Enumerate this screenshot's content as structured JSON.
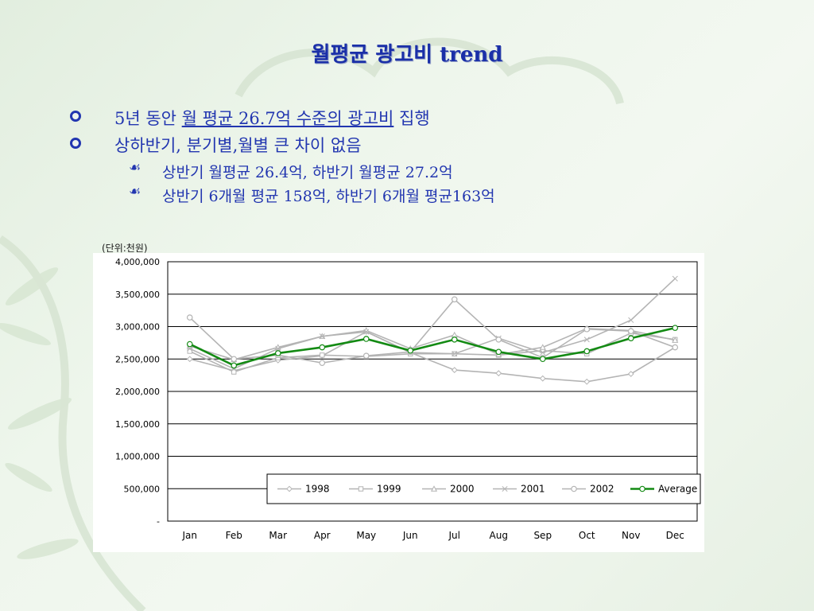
{
  "slide": {
    "title": "월평균 광고비 trend",
    "bullets": [
      {
        "prefix": "5년 동안 ",
        "underlined": "월 평균 26.7억 수준의 광고비",
        "suffix": " 집행"
      },
      {
        "text": "상하반기, 분기별,월별 큰 차이 없음"
      }
    ],
    "sub_bullets": [
      "상반기 월평균 26.4억, 하반기 월평균 27.2억",
      "상반기 6개월 평균 158억, 하반기 6개월 평균163억"
    ],
    "sub_bullet_glyph": "☙",
    "unit_label": "(단위:천원)"
  },
  "chart_data": {
    "type": "line",
    "categories": [
      "Jan",
      "Feb",
      "Mar",
      "Apr",
      "May",
      "Jun",
      "Jul",
      "Aug",
      "Sep",
      "Oct",
      "Nov",
      "Dec"
    ],
    "ylim": [
      0,
      4000000
    ],
    "y_ticks": [
      0,
      500000,
      1000000,
      1500000,
      2000000,
      2500000,
      3000000,
      3500000,
      4000000
    ],
    "y_tick_labels": [
      "-",
      "500,000",
      "1,000,000",
      "1,500,000",
      "2,000,000",
      "2,500,000",
      "3,000,000",
      "3,500,000",
      "4,000,000"
    ],
    "grid": true,
    "legend_position": "bottom-right",
    "colors": {
      "series_gray": "#b4b4b4",
      "average": "#138a13",
      "grid": "#000000"
    },
    "series": [
      {
        "name": "1998",
        "marker": "diamond",
        "values": [
          2500000,
          2320000,
          2480000,
          2550000,
          2920000,
          2600000,
          2330000,
          2280000,
          2200000,
          2150000,
          2270000,
          2680000
        ]
      },
      {
        "name": "1999",
        "marker": "square",
        "values": [
          2620000,
          2300000,
          2520000,
          2560000,
          2540000,
          2580000,
          2580000,
          2560000,
          2630000,
          2580000,
          2900000,
          2800000
        ]
      },
      {
        "name": "2000",
        "marker": "triangle",
        "values": [
          2700000,
          2490000,
          2680000,
          2850000,
          2940000,
          2660000,
          2870000,
          2570000,
          2680000,
          2970000,
          2940000,
          2790000
        ]
      },
      {
        "name": "2001",
        "marker": "x",
        "values": [
          2660000,
          2350000,
          2660000,
          2850000,
          2920000,
          2600000,
          2580000,
          2820000,
          2600000,
          2800000,
          3100000,
          3740000
        ]
      },
      {
        "name": "2002",
        "marker": "circle",
        "values": [
          3140000,
          2500000,
          2560000,
          2440000,
          2550000,
          2610000,
          3420000,
          2800000,
          2520000,
          2960000,
          2930000,
          2680000
        ]
      },
      {
        "name": "Average",
        "marker": "circle",
        "values": [
          2730000,
          2400000,
          2590000,
          2680000,
          2810000,
          2630000,
          2800000,
          2610000,
          2500000,
          2620000,
          2820000,
          2980000
        ]
      }
    ]
  }
}
